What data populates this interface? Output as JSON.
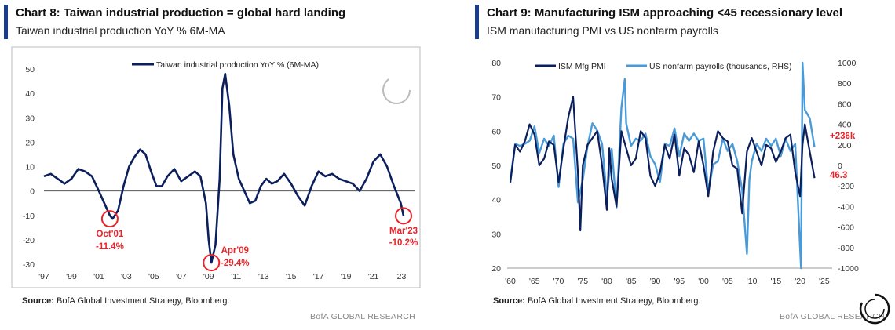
{
  "chart_data": [
    {
      "type": "line",
      "title": "Chart 8: Taiwan industrial production = global hard landing",
      "subtitle": "Taiwan industrial production YoY % 6M-MA",
      "legend": [
        "Taiwan industrial production YoY % (6M-MA)"
      ],
      "legend_position": "top-center",
      "ylim": [
        -30,
        50
      ],
      "yticks": [
        "50",
        "40",
        "30",
        "20",
        "10",
        "0",
        "-10",
        "-20",
        "-30"
      ],
      "xlim": [
        1997,
        2024
      ],
      "xticks": [
        "'97",
        "'99",
        "'01",
        "'03",
        "'05",
        "'07",
        "'09",
        "'11",
        "'13",
        "'15",
        "'17",
        "'19",
        "'21",
        "'23"
      ],
      "series": [
        {
          "name": "Taiwan industrial production YoY % (6M-MA)",
          "color": "#0b1f5c",
          "x": [
            1997.0,
            1997.5,
            1998.0,
            1998.5,
            1999.0,
            1999.5,
            2000.0,
            2000.5,
            2001.0,
            2001.4,
            2001.8,
            2002.0,
            2002.4,
            2002.8,
            2003.2,
            2003.6,
            2004.0,
            2004.4,
            2004.8,
            2005.2,
            2005.6,
            2006.0,
            2006.5,
            2007.0,
            2007.5,
            2008.0,
            2008.4,
            2008.8,
            2009.0,
            2009.2,
            2009.5,
            2009.8,
            2010.0,
            2010.2,
            2010.5,
            2010.8,
            2011.2,
            2011.6,
            2012.0,
            2012.4,
            2012.8,
            2013.2,
            2013.6,
            2014.0,
            2014.5,
            2015.0,
            2015.5,
            2016.0,
            2016.5,
            2017.0,
            2017.5,
            2018.0,
            2018.5,
            2019.0,
            2019.5,
            2020.0,
            2020.5,
            2021.0,
            2021.5,
            2022.0,
            2022.5,
            2023.0,
            2023.2
          ],
          "values": [
            6,
            7,
            5,
            3,
            5,
            9,
            8,
            6,
            0,
            -5,
            -10,
            -11.4,
            -8,
            2,
            10,
            14,
            17,
            15,
            8,
            2,
            2,
            6,
            9,
            4,
            6,
            8,
            6,
            -5,
            -20,
            -29.4,
            -22,
            5,
            42,
            48,
            35,
            15,
            5,
            0,
            -5,
            -4,
            2,
            5,
            3,
            4,
            7,
            3,
            -2,
            -6,
            2,
            8,
            6,
            7,
            5,
            4,
            3,
            0,
            5,
            12,
            15,
            10,
            2,
            -5,
            -10.2
          ]
        }
      ],
      "annotations": [
        {
          "label": "Oct'01",
          "value": "-11.4%",
          "x": 2001.8,
          "y": -11.4
        },
        {
          "label": "Apr'09",
          "value": "-29.4%",
          "x": 2009.2,
          "y": -29.4
        },
        {
          "label": "Mar'23",
          "value": "-10.2%",
          "x": 2023.2,
          "y": -10.2
        }
      ]
    },
    {
      "type": "line",
      "title": "Chart 9: Manufacturing ISM approaching <45 recessionary level",
      "subtitle": "ISM manufacturing PMI vs US nonfarm payrolls",
      "legend": [
        "ISM Mfg PMI",
        "US nonfarm payrolls (thousands, RHS)"
      ],
      "legend_position": "top-left",
      "ylim": [
        20,
        80
      ],
      "yticks": [
        "80",
        "70",
        "60",
        "50",
        "40",
        "30",
        "20"
      ],
      "y2lim": [
        -1000,
        1000
      ],
      "y2ticks": [
        "1000",
        "800",
        "600",
        "400",
        "200",
        "0",
        "-200",
        "-400",
        "-600",
        "-800",
        "-1000"
      ],
      "xlim": [
        1960,
        2026
      ],
      "xticks": [
        "'60",
        "'65",
        "'70",
        "'75",
        "'80",
        "'85",
        "'90",
        "'95",
        "'00",
        "'05",
        "'10",
        "'15",
        "'20",
        "'25"
      ],
      "series": [
        {
          "name": "ISM Mfg PMI",
          "axis": "left",
          "color": "#0b1f5c",
          "x": [
            1960,
            1961,
            1962,
            1963,
            1964,
            1965,
            1966,
            1967,
            1968,
            1969,
            1970,
            1971,
            1972,
            1973,
            1974,
            1974.5,
            1975,
            1976,
            1977,
            1978,
            1979,
            1980,
            1980.5,
            1981,
            1982,
            1983,
            1984,
            1985,
            1986,
            1987,
            1988,
            1989,
            1990,
            1991,
            1992,
            1993,
            1994,
            1995,
            1996,
            1997,
            1998,
            1999,
            2000,
            2001,
            2002,
            2003,
            2004,
            2005,
            2006,
            2007,
            2008,
            2009,
            2010,
            2011,
            2012,
            2013,
            2014,
            2015,
            2016,
            2017,
            2018,
            2019,
            2020,
            2020.5,
            2021,
            2022,
            2023
          ],
          "values": [
            45,
            56,
            54,
            57,
            62,
            59,
            50,
            52,
            57,
            56,
            45,
            55,
            64,
            70,
            48,
            31,
            50,
            56,
            58,
            60,
            50,
            37,
            55,
            46,
            38,
            60,
            55,
            50,
            52,
            60,
            58,
            47,
            44,
            48,
            56,
            52,
            59,
            47,
            55,
            53,
            48,
            57,
            50,
            41,
            54,
            60,
            58,
            57,
            50,
            49,
            36,
            54,
            58,
            54,
            50,
            56,
            55,
            51,
            54,
            58,
            59,
            48,
            41,
            56,
            62,
            54,
            46.3
          ]
        },
        {
          "name": "US nonfarm payrolls (thousands, RHS)",
          "axis": "right",
          "color": "#4a9ad8",
          "x": [
            1960,
            1961,
            1962,
            1963,
            1964,
            1965,
            1966,
            1967,
            1968,
            1969,
            1970,
            1971,
            1972,
            1973,
            1974,
            1975,
            1976,
            1977,
            1978,
            1979,
            1980,
            1981,
            1982,
            1983,
            1983.7,
            1984,
            1985,
            1986,
            1987,
            1988,
            1989,
            1990,
            1991,
            1992,
            1993,
            1994,
            1995,
            1996,
            1997,
            1998,
            1999,
            2000,
            2001,
            2002,
            2003,
            2004,
            2005,
            2006,
            2007,
            2008,
            2009,
            2009.5,
            2010,
            2011,
            2012,
            2013,
            2014,
            2015,
            2016,
            2017,
            2018,
            2019,
            2020.2,
            2020.5,
            2021,
            2022,
            2023
          ],
          "values": [
            -80,
            150,
            250,
            150,
            300,
            320,
            180,
            200,
            250,
            230,
            -150,
            150,
            350,
            200,
            -300,
            -200,
            250,
            350,
            400,
            150,
            -250,
            100,
            -350,
            500,
            900,
            350,
            250,
            200,
            300,
            250,
            150,
            -50,
            -100,
            150,
            250,
            300,
            150,
            250,
            300,
            250,
            300,
            200,
            -200,
            -50,
            100,
            200,
            200,
            150,
            100,
            -300,
            -800,
            -200,
            100,
            150,
            200,
            200,
            250,
            200,
            150,
            200,
            200,
            150,
            -1000,
            1000,
            600,
            400,
            236
          ]
        }
      ],
      "end_labels": {
        "payrolls": "+236k",
        "pmi": "46.3"
      }
    }
  ],
  "sources": {
    "left": "BofA Global Investment Strategy, Bloomberg.",
    "right": "BofA Global Investment Strategy, Bloomberg.",
    "label": "Source:"
  },
  "watermark": "BofA GLOBAL RESEARCH",
  "colors": {
    "accent": "#1a3c8f",
    "annotation": "#e8242b",
    "dark_line": "#0b1f5c",
    "light_line": "#4a9ad8"
  }
}
